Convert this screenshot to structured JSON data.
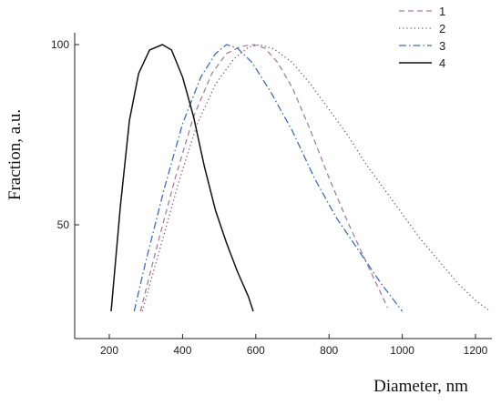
{
  "chart_data": {
    "type": "line",
    "title": "",
    "xlabel": "Diameter, nm",
    "ylabel": "Fraction, a.u.",
    "xlim": [
      100,
      1300
    ],
    "ylim": [
      25,
      108
    ],
    "x_ticks": [
      200,
      400,
      600,
      800,
      1000,
      1200
    ],
    "y_ticks": [
      50,
      100
    ],
    "grid": false,
    "legend_position": "top-right",
    "series": [
      {
        "name": "1",
        "color": "#a97ea0",
        "dash": "dashed",
        "points": [
          [
            285,
            26
          ],
          [
            330,
            44
          ],
          [
            380,
            63
          ],
          [
            430,
            80
          ],
          [
            480,
            92
          ],
          [
            520,
            97.5
          ],
          [
            560,
            99.5
          ],
          [
            595,
            100
          ],
          [
            625,
            99
          ],
          [
            660,
            95
          ],
          [
            700,
            88
          ],
          [
            750,
            76
          ],
          [
            800,
            63
          ],
          [
            850,
            51
          ],
          [
            900,
            40
          ],
          [
            960,
            27
          ]
        ]
      },
      {
        "name": "2",
        "color": "#7a4e6e",
        "dash": "dotted",
        "points": [
          [
            290,
            26
          ],
          [
            340,
            44
          ],
          [
            390,
            62
          ],
          [
            440,
            78
          ],
          [
            490,
            89
          ],
          [
            540,
            96
          ],
          [
            580,
            99.3
          ],
          [
            610,
            100
          ],
          [
            650,
            98.8
          ],
          [
            700,
            95
          ],
          [
            750,
            89
          ],
          [
            800,
            82
          ],
          [
            850,
            75
          ],
          [
            900,
            67
          ],
          [
            950,
            60
          ],
          [
            1000,
            53
          ],
          [
            1050,
            46
          ],
          [
            1100,
            40
          ],
          [
            1150,
            34
          ],
          [
            1200,
            29
          ],
          [
            1240,
            26
          ]
        ]
      },
      {
        "name": "3",
        "color": "#3a6fc4",
        "dash": "dashdot",
        "points": [
          [
            268,
            26
          ],
          [
            300,
            40
          ],
          [
            350,
            60
          ],
          [
            400,
            78
          ],
          [
            450,
            91
          ],
          [
            490,
            97.5
          ],
          [
            520,
            100
          ],
          [
            550,
            99
          ],
          [
            590,
            95
          ],
          [
            640,
            87
          ],
          [
            700,
            76
          ],
          [
            760,
            63
          ],
          [
            820,
            52
          ],
          [
            880,
            43
          ],
          [
            940,
            34
          ],
          [
            1000,
            26
          ]
        ]
      },
      {
        "name": "4",
        "color": "#111111",
        "dash": "solid",
        "points": [
          [
            205,
            26
          ],
          [
            230,
            55
          ],
          [
            255,
            79
          ],
          [
            280,
            92
          ],
          [
            310,
            98.5
          ],
          [
            345,
            100
          ],
          [
            370,
            98.5
          ],
          [
            400,
            91
          ],
          [
            430,
            80
          ],
          [
            460,
            66
          ],
          [
            490,
            54
          ],
          [
            520,
            45
          ],
          [
            550,
            37
          ],
          [
            580,
            30
          ],
          [
            593,
            26
          ]
        ]
      }
    ]
  }
}
